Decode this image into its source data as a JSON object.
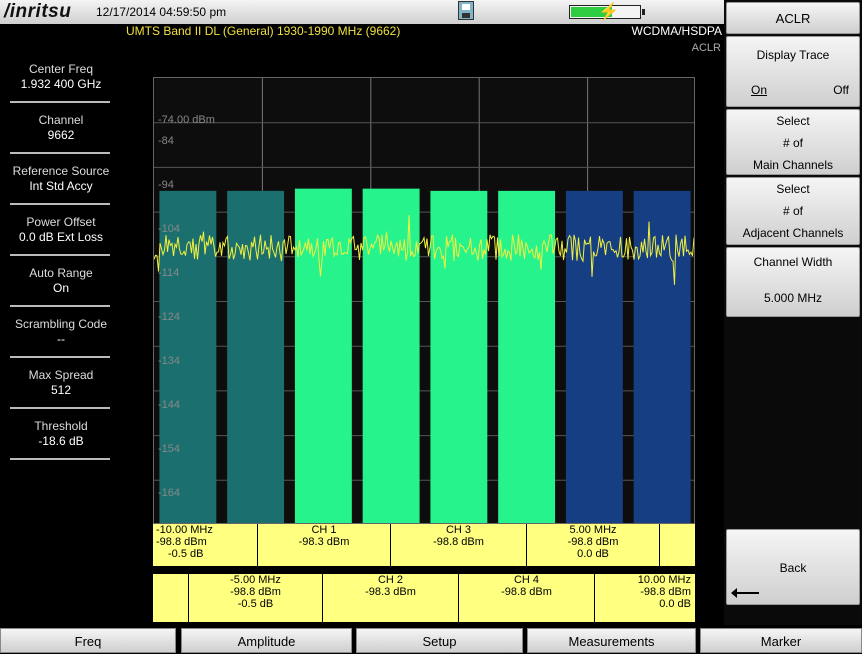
{
  "header": {
    "brand": "/inritsu",
    "datetime": "12/17/2014 04:59:50 pm",
    "signal_standard": "UMTS Band II DL (General) 1930-1990 MHz (9662)",
    "mode": "WCDMA/HSDPA",
    "measurement": "ACLR",
    "battery_level": 0.6
  },
  "params": [
    {
      "label": "Center Freq",
      "value": "1.932 400 GHz"
    },
    {
      "label": "Channel",
      "value": "9662"
    },
    {
      "label": "Reference Source",
      "value": "Int Std Accy"
    },
    {
      "label": "Power Offset",
      "value": "0.0 dB Ext Loss"
    },
    {
      "label": "Auto Range",
      "value": "On"
    },
    {
      "label": "Scrambling Code",
      "value": "--"
    },
    {
      "label": "Max Spread",
      "value": "512"
    },
    {
      "label": "Threshold",
      "value": "-18.6 dB"
    }
  ],
  "chart_data": {
    "type": "bar",
    "ref_level_label": "-74.00 dBm",
    "y_ticks": [
      "-84",
      "-94",
      "-104",
      "-114",
      "-124",
      "-134",
      "-144",
      "-154",
      "-164"
    ],
    "ylim": [
      -174,
      -74
    ],
    "categories": [
      "-10.00 MHz",
      "-5.00 MHz",
      "CH 1",
      "CH 2",
      "CH 3",
      "CH 4",
      "5.00 MHz",
      "10.00 MHz"
    ],
    "values": [
      -98.8,
      -98.8,
      -98.3,
      -98.3,
      -98.8,
      -98.8,
      -98.8,
      -98.8
    ],
    "bar_colors": [
      "#1b706f",
      "#1b706f",
      "#27f38d",
      "#27f38d",
      "#27f38d",
      "#27f38d",
      "#163e83",
      "#163e83"
    ],
    "trace_color": "#f0f040",
    "grid": true
  },
  "table": {
    "row1": [
      {
        "name": "-10.00 MHz",
        "power": "-98.8 dBm",
        "rel": "-0.5 dB"
      },
      {
        "name": "CH 1",
        "power": "-98.3 dBm"
      },
      {
        "name": "CH 3",
        "power": "-98.8 dBm"
      },
      {
        "name": "5.00 MHz",
        "power": "-98.8 dBm",
        "rel": "0.0 dB"
      }
    ],
    "row2": [
      {
        "name": "-5.00 MHz",
        "power": "-98.8 dBm",
        "rel": "-0.5 dB"
      },
      {
        "name": "CH 2",
        "power": "-98.3 dBm"
      },
      {
        "name": "CH 4",
        "power": "-98.8 dBm"
      },
      {
        "name": "10.00 MHz",
        "power": "-98.8 dBm",
        "rel": "0.0 dB"
      }
    ]
  },
  "softkeys": {
    "title": "ACLR",
    "display_trace": {
      "label": "Display Trace",
      "on": "On",
      "off": "Off"
    },
    "main_channels": {
      "line1": "Select",
      "line2": "# of",
      "line3": "Main Channels"
    },
    "adjacent_channels": {
      "line1": "Select",
      "line2": "# of",
      "line3": "Adjacent Channels"
    },
    "channel_width": {
      "label": "Channel Width",
      "value": "5.000 MHz"
    },
    "back": "Back"
  },
  "bottom_tabs": [
    "Freq",
    "Amplitude",
    "Setup",
    "Measurements",
    "Marker"
  ]
}
